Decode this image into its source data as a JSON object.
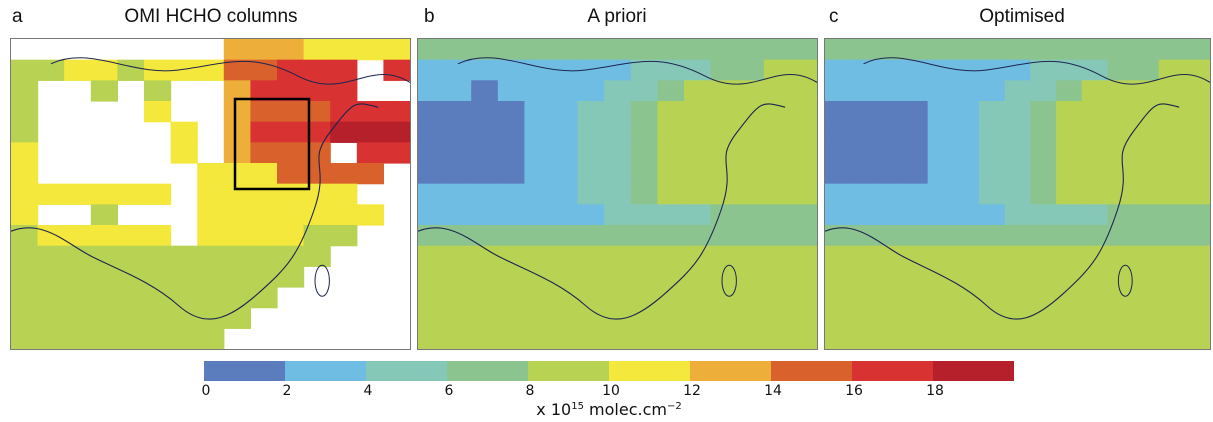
{
  "panels": [
    {
      "letter": "a",
      "title": "OMI HCHO columns"
    },
    {
      "letter": "b",
      "title": "A priori"
    },
    {
      "letter": "c",
      "title": "Optimised"
    }
  ],
  "colorbar": {
    "ticks": [
      "0",
      "2",
      "4",
      "6",
      "8",
      "10",
      "12",
      "14",
      "16",
      "18"
    ],
    "colors": [
      "#5b7cbd",
      "#6fbde3",
      "#86c8b8",
      "#8cc490",
      "#b8d353",
      "#f5e83c",
      "#eeae3a",
      "#d9612c",
      "#d83232",
      "#b5202a"
    ],
    "unit_prefix": "x 10",
    "unit_exp": "15",
    "unit_suffix": " molec.cm",
    "unit_suffix_exp": "−2"
  },
  "grids": {
    "a": [
      "xxxxxxxx6665555",
      "4455455577888x8",
      "4xx4x4xx68888xx",
      "4xxxx5xx6777888",
      "4xxxxx5x6888999",
      "5xxxxx5x6777x88",
      "5xxxxxx5557777x",
      "555555x555555xx",
      "5xx4xxx5555555x",
      "455555x555544xx",
      "444444444444xxx",
      "44444444444xxxx",
      "4444444444xxxxx",
      "444444444xxxxxx",
      "44444444xxxxxxx"
    ],
    "b": [
      "333333333333333",
      "111111112223344",
      "110111122344444",
      "000011223444444",
      "000011223444444",
      "000011223444444",
      "000011223444444",
      "111111223444444",
      "111111122223333",
      "333333333333333",
      "444444444444444",
      "444444444444444",
      "444444444444444",
      "444444444444444",
      "444444444444444"
    ],
    "c": [
      "333333333333333",
      "111111112223344",
      "111111122344444",
      "000011223444444",
      "000011223444444",
      "000011223444444",
      "000011223444444",
      "111111223444444",
      "111111122223333",
      "333333333333333",
      "444444444444444",
      "444444444444444",
      "444444444444444",
      "444444444444444",
      "444444444444444"
    ]
  }
}
